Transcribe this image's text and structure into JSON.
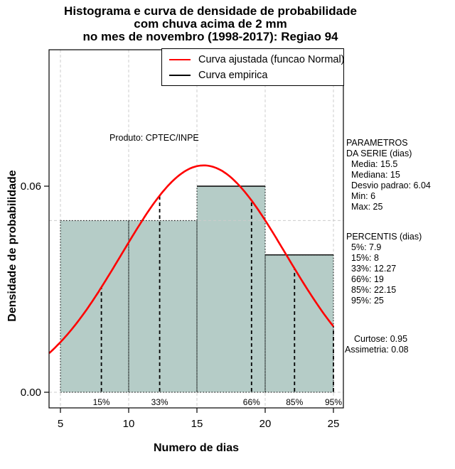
{
  "title": {
    "line1": "Histograma e curva de densidade de probabilidade",
    "line2": "com chuva acima de 2 mm",
    "line3": "no mes de novembro (1998-2017): Regiao 94"
  },
  "watermark": "Produto: CPTEC/INPE",
  "legend": [
    {
      "label": "Curva ajustada (funcao Normal)",
      "color": "#ff0000"
    },
    {
      "label": "Curva empirica",
      "color": "#000000"
    }
  ],
  "axes": {
    "x_label": "Numero de dias",
    "y_label": "Densidade de probabilidade",
    "x_ticks": [
      "5",
      "10",
      "15",
      "20",
      "25"
    ],
    "y_ticks": [
      "0.00",
      "0.06"
    ]
  },
  "side_panel": {
    "params_title1": "PARAMETROS",
    "params_title2": "DA SERIE (dias)",
    "params": [
      "Media: 15.5",
      "Mediana: 15",
      "Desvio padrao: 6.04",
      "Min: 6",
      "Max: 25"
    ],
    "percentis_title": "PERCENTIS (dias)",
    "percentis": [
      "5%: 7.9",
      "15%: 8",
      "33%: 12.27",
      "66%: 19",
      "85%: 22.15",
      "95%: 25"
    ],
    "curtose": "Curtose: 0.95",
    "assimetria": "Assimetria: 0.08"
  },
  "chart_data": {
    "type": "histogram_with_fitted_normal_density",
    "title": "Histograma e curva de densidade de probabilidade com chuva acima de 2 mm no mes de novembro (1998-2017): Regiao 94",
    "xlabel": "Numero de dias",
    "ylabel": "Densidade de probabilidade",
    "xlim": [
      4.17,
      25.73
    ],
    "ylim": [
      -0.0046,
      0.0997
    ],
    "x_tick_values": [
      5,
      10,
      15,
      20,
      25
    ],
    "y_tick_values": [
      0,
      0.06
    ],
    "y_tick_labels": [
      "0.00",
      "0.06"
    ],
    "bars": [
      {
        "from": 5,
        "to": 10,
        "density": 0.05
      },
      {
        "from": 10,
        "to": 15,
        "density": 0.05
      },
      {
        "from": 15,
        "to": 20,
        "density": 0.06
      },
      {
        "from": 20,
        "to": 25,
        "density": 0.04
      }
    ],
    "empirical_top_segments": [
      {
        "from": 15,
        "to": 20,
        "density": 0.06
      },
      {
        "from": 20,
        "to": 25,
        "density": 0.04
      }
    ],
    "normal_fit": {
      "mean": 15.5,
      "sd": 6.04,
      "x_from": 4.17,
      "x_to": 25
    },
    "percentile_lines": [
      {
        "label": "15%",
        "x": 8
      },
      {
        "label": "33%",
        "x": 12.27
      },
      {
        "label": "66%",
        "x": 19
      },
      {
        "label": "85%",
        "x": 22.15
      },
      {
        "label": "95%",
        "x": 25
      }
    ],
    "grid": {
      "v_at": [
        5,
        10,
        15,
        20,
        25
      ],
      "h_at": [
        0,
        0.05
      ]
    },
    "legend_position": "topright",
    "colors": {
      "bar_fill": "#b5ccc7",
      "curve": "#ff0000",
      "empirical": "#000000",
      "grid": "#cccccc",
      "percentile_line": "#000000"
    }
  }
}
